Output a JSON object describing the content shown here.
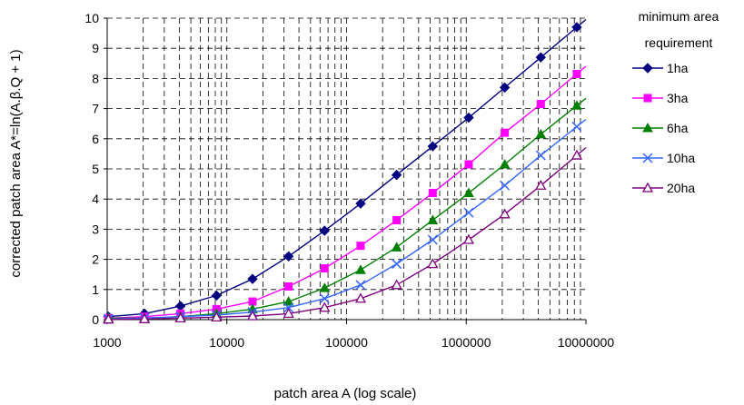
{
  "chart_data": {
    "type": "line",
    "xlabel": "patch area A (log scale)",
    "ylabel": "corrected patch area A*=ln(A.β.Q + 1)",
    "x_scale": "log",
    "xlim": [
      1000,
      10000000
    ],
    "ylim": [
      0,
      10
    ],
    "x_ticks": [
      1000,
      10000,
      100000,
      1000000,
      10000000
    ],
    "x_tick_labels": [
      "1000",
      "10000",
      "100000",
      "1000000",
      "10000000"
    ],
    "y_ticks": [
      0,
      1,
      2,
      3,
      4,
      5,
      6,
      7,
      8,
      9,
      10
    ],
    "grid": true,
    "legend": {
      "title": "minimum area requirement",
      "title_lines": [
        "minimum area",
        "requirement"
      ],
      "placement": "right"
    },
    "x": [
      1024,
      2048,
      4096,
      8192,
      16384,
      32768,
      65536,
      131072,
      262144,
      524288,
      1048576,
      2097152,
      4194304,
      8388608
    ],
    "series": [
      {
        "name": "1ha",
        "color": "#000080",
        "marker": "diamond",
        "values": [
          0.1,
          0.2,
          0.45,
          0.8,
          1.35,
          2.1,
          2.95,
          3.85,
          4.8,
          5.75,
          6.7,
          7.7,
          8.7,
          9.7
        ]
      },
      {
        "name": "3ha",
        "color": "#FF00FF",
        "marker": "square",
        "values": [
          0.05,
          0.1,
          0.2,
          0.35,
          0.6,
          1.1,
          1.7,
          2.45,
          3.3,
          4.2,
          5.15,
          6.2,
          7.15,
          8.15
        ]
      },
      {
        "name": "6ha",
        "color": "#008000",
        "marker": "triangle",
        "values": [
          0.05,
          0.05,
          0.1,
          0.2,
          0.35,
          0.6,
          1.05,
          1.65,
          2.4,
          3.3,
          4.2,
          5.15,
          6.15,
          7.1
        ]
      },
      {
        "name": "10ha",
        "color": "#3366FF",
        "marker": "cross",
        "values": [
          0.02,
          0.05,
          0.1,
          0.15,
          0.25,
          0.4,
          0.7,
          1.15,
          1.85,
          2.65,
          3.55,
          4.45,
          5.45,
          6.4
        ]
      },
      {
        "name": "20ha",
        "color": "#800080",
        "marker": "open-triangle",
        "values": [
          0.01,
          0.02,
          0.05,
          0.08,
          0.12,
          0.2,
          0.4,
          0.7,
          1.15,
          1.85,
          2.65,
          3.5,
          4.45,
          5.45
        ]
      }
    ]
  }
}
